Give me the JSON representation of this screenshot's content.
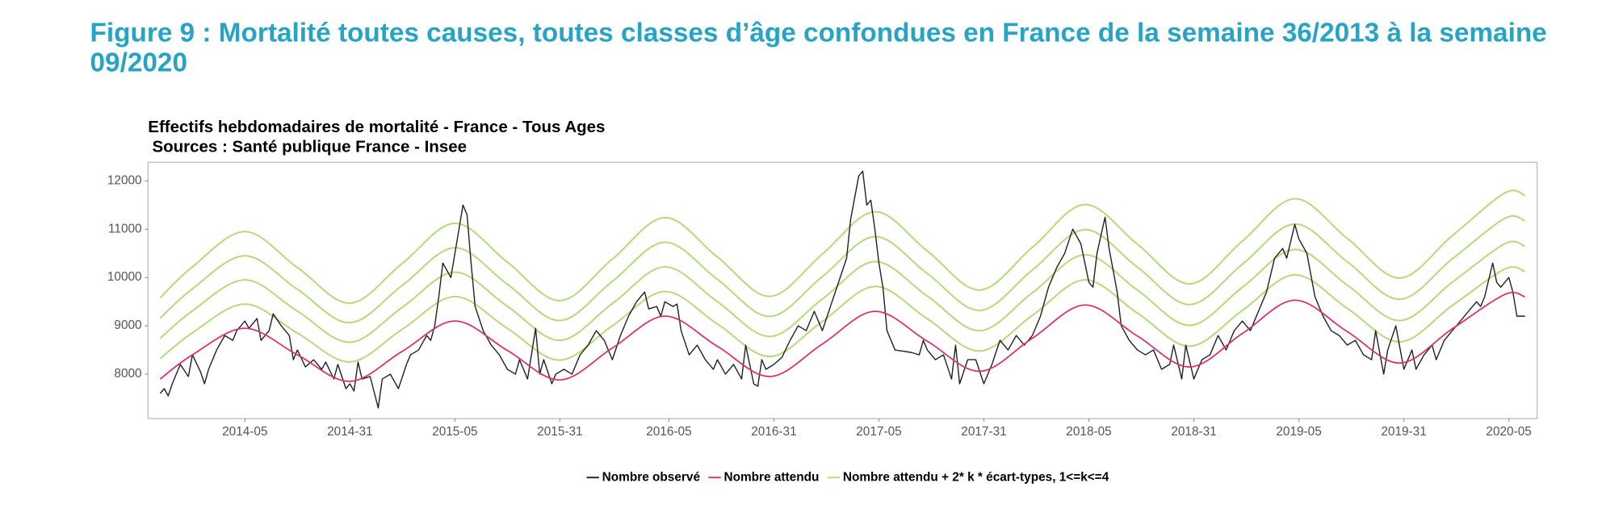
{
  "header": {
    "title": "Figure 9 : Mortalité toutes causes, toutes classes d’âge confondues en France de la semaine 36/2013 à la semaine 09/2020"
  },
  "chart_data": {
    "type": "line",
    "title": "Effectifs hebdomadaires de mortalité  - France - Tous Ages",
    "subtitle": "Sources : Santé publique France - Insee",
    "xlim": [
      -3,
      341
    ],
    "ylim": [
      7080,
      12385
    ],
    "xticks": [
      {
        "value": 21,
        "label": "2014-05"
      },
      {
        "value": 47,
        "label": "2014-31"
      },
      {
        "value": 73,
        "label": "2015-05"
      },
      {
        "value": 99,
        "label": "2015-31"
      },
      {
        "value": 126,
        "label": "2016-05"
      },
      {
        "value": 152,
        "label": "2016-31"
      },
      {
        "value": 178,
        "label": "2017-05"
      },
      {
        "value": 204,
        "label": "2017-31"
      },
      {
        "value": 230,
        "label": "2018-05"
      },
      {
        "value": 256,
        "label": "2018-31"
      },
      {
        "value": 282,
        "label": "2019-05"
      },
      {
        "value": 308,
        "label": "2019-31"
      },
      {
        "value": 334,
        "label": "2020-05"
      }
    ],
    "yticks": [
      8000,
      9000,
      10000,
      11000,
      12000
    ],
    "grid": false,
    "legend": "bottom",
    "x": [
      0,
      8,
      21,
      34,
      47,
      60,
      73,
      86,
      99,
      112,
      125,
      138,
      151,
      164,
      177,
      190,
      203,
      216,
      229,
      242,
      255,
      268,
      281,
      294,
      307,
      320,
      333,
      338
    ],
    "series": [
      {
        "name": "Nombre observé",
        "color": "#222222",
        "x": [
          0,
          1,
          2,
          3,
          5,
          7,
          8,
          10,
          11,
          12,
          14,
          16,
          18,
          19,
          21,
          22,
          24,
          25,
          27,
          28,
          30,
          32,
          33,
          34,
          36,
          38,
          40,
          41,
          43,
          44,
          46,
          47,
          48,
          49,
          50,
          52,
          54,
          55,
          57,
          59,
          61,
          62,
          64,
          66,
          67,
          68,
          69,
          70,
          72,
          73,
          75,
          76,
          77,
          78,
          80,
          82,
          84,
          86,
          88,
          89,
          91,
          93,
          94,
          95,
          97,
          98,
          100,
          102,
          104,
          106,
          108,
          110,
          112,
          114,
          116,
          118,
          120,
          121,
          123,
          124,
          125,
          127,
          128,
          129,
          131,
          133,
          135,
          137,
          138,
          140,
          142,
          144,
          145,
          147,
          148,
          149,
          150,
          152,
          154,
          156,
          158,
          160,
          162,
          164,
          166,
          168,
          170,
          171,
          173,
          174,
          175,
          176,
          177,
          178,
          179,
          180,
          182,
          186,
          188,
          189,
          190,
          192,
          194,
          196,
          197,
          198,
          200,
          202,
          204,
          206,
          208,
          210,
          212,
          214,
          216,
          218,
          220,
          222,
          224,
          226,
          228,
          230,
          231,
          232,
          234,
          235,
          237,
          238,
          240,
          242,
          244,
          246,
          248,
          250,
          251,
          253,
          254,
          256,
          258,
          260,
          262,
          264,
          266,
          268,
          270,
          272,
          274,
          276,
          278,
          279,
          281,
          282,
          284,
          286,
          288,
          290,
          292,
          294,
          296,
          298,
          300,
          301,
          303,
          304,
          306,
          308,
          310,
          311,
          313,
          315,
          316,
          318,
          320,
          322,
          324,
          326,
          327,
          328,
          330,
          331,
          332,
          334,
          335,
          336,
          338
        ],
        "values": [
          7600,
          7700,
          7550,
          7800,
          8200,
          7950,
          8400,
          8050,
          7800,
          8100,
          8500,
          8800,
          8700,
          8900,
          9100,
          8950,
          9150,
          8700,
          8900,
          9250,
          9000,
          8800,
          8300,
          8500,
          8150,
          8300,
          8100,
          8250,
          7900,
          8200,
          7700,
          7800,
          7650,
          8250,
          7900,
          7950,
          7300,
          7900,
          8000,
          7700,
          8200,
          8400,
          8500,
          8800,
          8700,
          9000,
          9600,
          10300,
          10000,
          10500,
          11500,
          11300,
          10300,
          9400,
          8900,
          8600,
          8400,
          8100,
          8000,
          8300,
          7900,
          8950,
          8000,
          8300,
          7800,
          8000,
          8100,
          8000,
          8400,
          8600,
          8900,
          8700,
          8300,
          8800,
          9200,
          9500,
          9700,
          9350,
          9400,
          9200,
          9500,
          9400,
          9450,
          8900,
          8400,
          8600,
          8300,
          8100,
          8300,
          8000,
          8200,
          7900,
          8600,
          7800,
          7750,
          8300,
          8100,
          8200,
          8350,
          8700,
          9000,
          8900,
          9300,
          8900,
          9400,
          9900,
          10400,
          11200,
          12100,
          12200,
          11500,
          11600,
          11000,
          10300,
          9800,
          8900,
          8500,
          8450,
          8400,
          8700,
          8500,
          8300,
          8400,
          7900,
          8600,
          7800,
          8300,
          8300,
          7800,
          8200,
          8700,
          8500,
          8800,
          8600,
          8800,
          9200,
          9800,
          10200,
          10500,
          11000,
          10700,
          9900,
          9800,
          10500,
          11250,
          10600,
          9700,
          9000,
          8700,
          8500,
          8400,
          8500,
          8100,
          8200,
          8600,
          7900,
          8600,
          7900,
          8300,
          8400,
          8800,
          8500,
          8900,
          9100,
          8900,
          9300,
          9700,
          10400,
          10600,
          10400,
          11100,
          10800,
          10500,
          9600,
          9200,
          8900,
          8800,
          8600,
          8700,
          8400,
          8300,
          8900,
          8000,
          8500,
          9000,
          8100,
          8500,
          8100,
          8400,
          8600,
          8300,
          8700,
          8900,
          9100,
          9300,
          9500,
          9400,
          9600,
          10300,
          9900,
          9800,
          10000,
          9700,
          9200,
          9200
        ]
      },
      {
        "name": "Nombre attendu",
        "color": "#e0306a",
        "values": [
          7900,
          8400,
          8950,
          8400,
          7850,
          8475,
          9100,
          8490,
          7880,
          8540,
          9200,
          8575,
          7950,
          8625,
          9300,
          8680,
          8060,
          8745,
          9430,
          8790,
          8150,
          8840,
          9530,
          8880,
          8230,
          8940,
          9650,
          9600
        ]
      },
      {
        "name": "Nombre attendu + 2* k * écart-types, 1<=k<=4",
        "color": "#b5dc7c",
        "lines": [
          [
            8320,
            8855,
            9450,
            8852,
            8255,
            8930,
            9605,
            8947,
            8290,
            9000,
            9710,
            9037,
            8365,
            9090,
            9815,
            9147,
            8480,
            9215,
            9950,
            9265,
            8580,
            9318,
            10055,
            9362,
            8670,
            9422,
            10175,
            10125
          ],
          [
            8740,
            9310,
            9950,
            9304,
            8660,
            9385,
            10110,
            9404,
            8700,
            9460,
            10220,
            9499,
            8780,
            9555,
            10330,
            9614,
            8900,
            9685,
            10470,
            9740,
            9010,
            9796,
            10580,
            9844,
            9110,
            9904,
            10700,
            10650
          ],
          [
            9160,
            9765,
            10450,
            9756,
            9065,
            9840,
            10615,
            9861,
            9110,
            9920,
            10730,
            9961,
            9195,
            10020,
            10845,
            10081,
            9320,
            10155,
            10990,
            10215,
            9440,
            10274,
            11105,
            10326,
            9550,
            10386,
            11225,
            11175
          ],
          [
            9580,
            10220,
            10950,
            10208,
            9470,
            10295,
            11120,
            10318,
            9520,
            10380,
            11240,
            10423,
            9610,
            10485,
            11360,
            10548,
            9740,
            10625,
            11510,
            10690,
            9870,
            10752,
            11630,
            10808,
            9990,
            10868,
            11750,
            11700
          ]
        ]
      }
    ]
  }
}
